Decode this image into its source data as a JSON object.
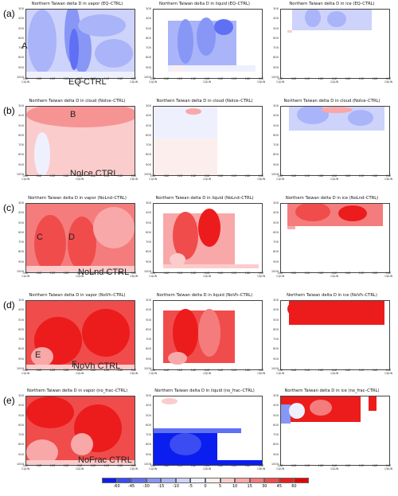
{
  "rows": [
    {
      "label": "(a)",
      "experiment": "EQ CTRL",
      "panels": [
        {
          "title": "Northern Taiwan delta D in vapor (EQ–CTRL)",
          "variable": "vapor",
          "annotations": [
            "A"
          ]
        },
        {
          "title": "Northern Taiwan delta D in liquid (EQ–CTRL)",
          "variable": "liquid",
          "annotations": []
        },
        {
          "title": "Northern Taiwan delta D in ice (EQ–CTRL)",
          "variable": "ice",
          "annotations": []
        }
      ]
    },
    {
      "label": "(b)",
      "experiment": "NoIce CTRL",
      "panels": [
        {
          "title": "Northern Taiwan delta D in cloud (NoIce–CTRL)",
          "variable": "cloud",
          "annotations": [
            "B"
          ]
        },
        {
          "title": "Northern Taiwan delta D in cloud (NoIce–CTRL)",
          "variable": "cloud",
          "annotations": []
        },
        {
          "title": "Northern Taiwan delta D in cloud (NoIce–CTRL)",
          "variable": "cloud",
          "annotations": []
        }
      ]
    },
    {
      "label": "(c)",
      "experiment": "NoLnd CTRL",
      "panels": [
        {
          "title": "Northern Taiwan delta D in vapor (NoLnd–CTRL)",
          "variable": "vapor",
          "annotations": [
            "C",
            "D"
          ]
        },
        {
          "title": "Northern Taiwan delta D in liquid (NoLnd–CTRL)",
          "variable": "liquid",
          "annotations": []
        },
        {
          "title": "Northern Taiwan delta D in ice (NoLnd–CTRL)",
          "variable": "ice",
          "annotations": []
        }
      ]
    },
    {
      "label": "(d)",
      "experiment": "NoVh CTRL",
      "panels": [
        {
          "title": "Northern Taiwan delta D in vapor (NoVh–CTRL)",
          "variable": "vapor",
          "annotations": [
            "E",
            "F"
          ]
        },
        {
          "title": "Northern Taiwan delta D in liquid (NoVh–CTRL)",
          "variable": "liquid",
          "annotations": []
        },
        {
          "title": "Northern Taiwan delta D in ice (NoVh–CTRL)",
          "variable": "ice",
          "annotations": []
        }
      ]
    },
    {
      "label": "(e)",
      "experiment": "NoFrac CTRL",
      "panels": [
        {
          "title": "Northern Taiwan delta D in vapor (no_frac–CTRL)",
          "variable": "vapor",
          "annotations": []
        },
        {
          "title": "Northern Taiwan delta D in liquid (no_frac–CTRL)",
          "variable": "liquid",
          "annotations": []
        },
        {
          "title": "Northern Taiwan delta D in ice (no_frac–CTRL)",
          "variable": "ice",
          "annotations": []
        }
      ]
    }
  ],
  "chart_data": {
    "type": "heatmap",
    "y_axis_ticks": [
      "300",
      "400",
      "500",
      "600",
      "700",
      "800",
      "900",
      "1000"
    ],
    "x_axis_ticks": [
      "00Z\n11JUN",
      "06Z",
      "12Z",
      "18Z",
      "00Z\n12JUN",
      "06Z",
      "12Z",
      "18Z",
      "00Z\n13JUN"
    ],
    "colorbar": {
      "labels": [
        "-60",
        "-45",
        "-30",
        "-15",
        "-10",
        "-5",
        "0",
        "5",
        "10",
        "15",
        "30",
        "45",
        "60"
      ],
      "colors": [
        "#0a1ef0",
        "#3a4cf2",
        "#6070f4",
        "#8896f6",
        "#aab4f8",
        "#cdd3fb",
        "#eef0fd",
        "#fdeeee",
        "#fbcccc",
        "#f8a8a8",
        "#f47c7c",
        "#f04c4c",
        "#ec1c1c",
        "#e50000"
      ]
    }
  }
}
